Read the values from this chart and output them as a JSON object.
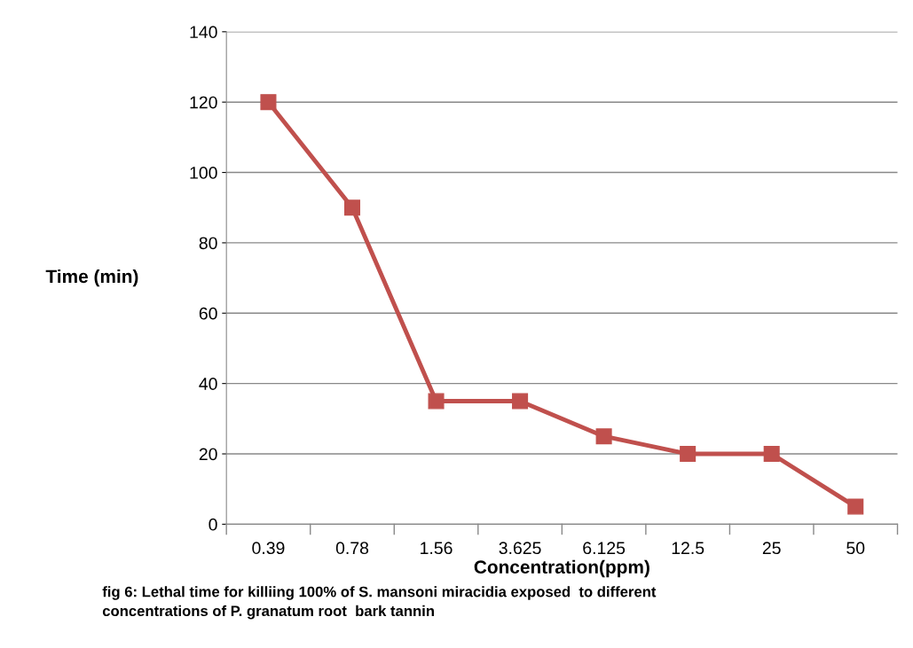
{
  "chart_data": {
    "type": "line",
    "xlabel": "Concentration(ppm)",
    "ylabel": "Time (min)",
    "categories": [
      "0.39",
      "0.78",
      "1.56",
      "3.625",
      "6.125",
      "12.5",
      "25",
      "50"
    ],
    "series": [
      {
        "color": "#c0504d",
        "values": [
          120,
          90,
          35,
          35,
          25,
          20,
          20,
          5
        ]
      }
    ],
    "ylim": [
      0,
      140
    ],
    "yticks": [
      0,
      20,
      40,
      60,
      80,
      100,
      120,
      140
    ],
    "grid": "y",
    "marker": "square",
    "line_style": "solid",
    "annotations": [
      "fig 6: Lethal time for killiing 100% of S. mansoni miracidia exposed  to different\nconcentrations of P. granatum root  bark tannin"
    ]
  }
}
